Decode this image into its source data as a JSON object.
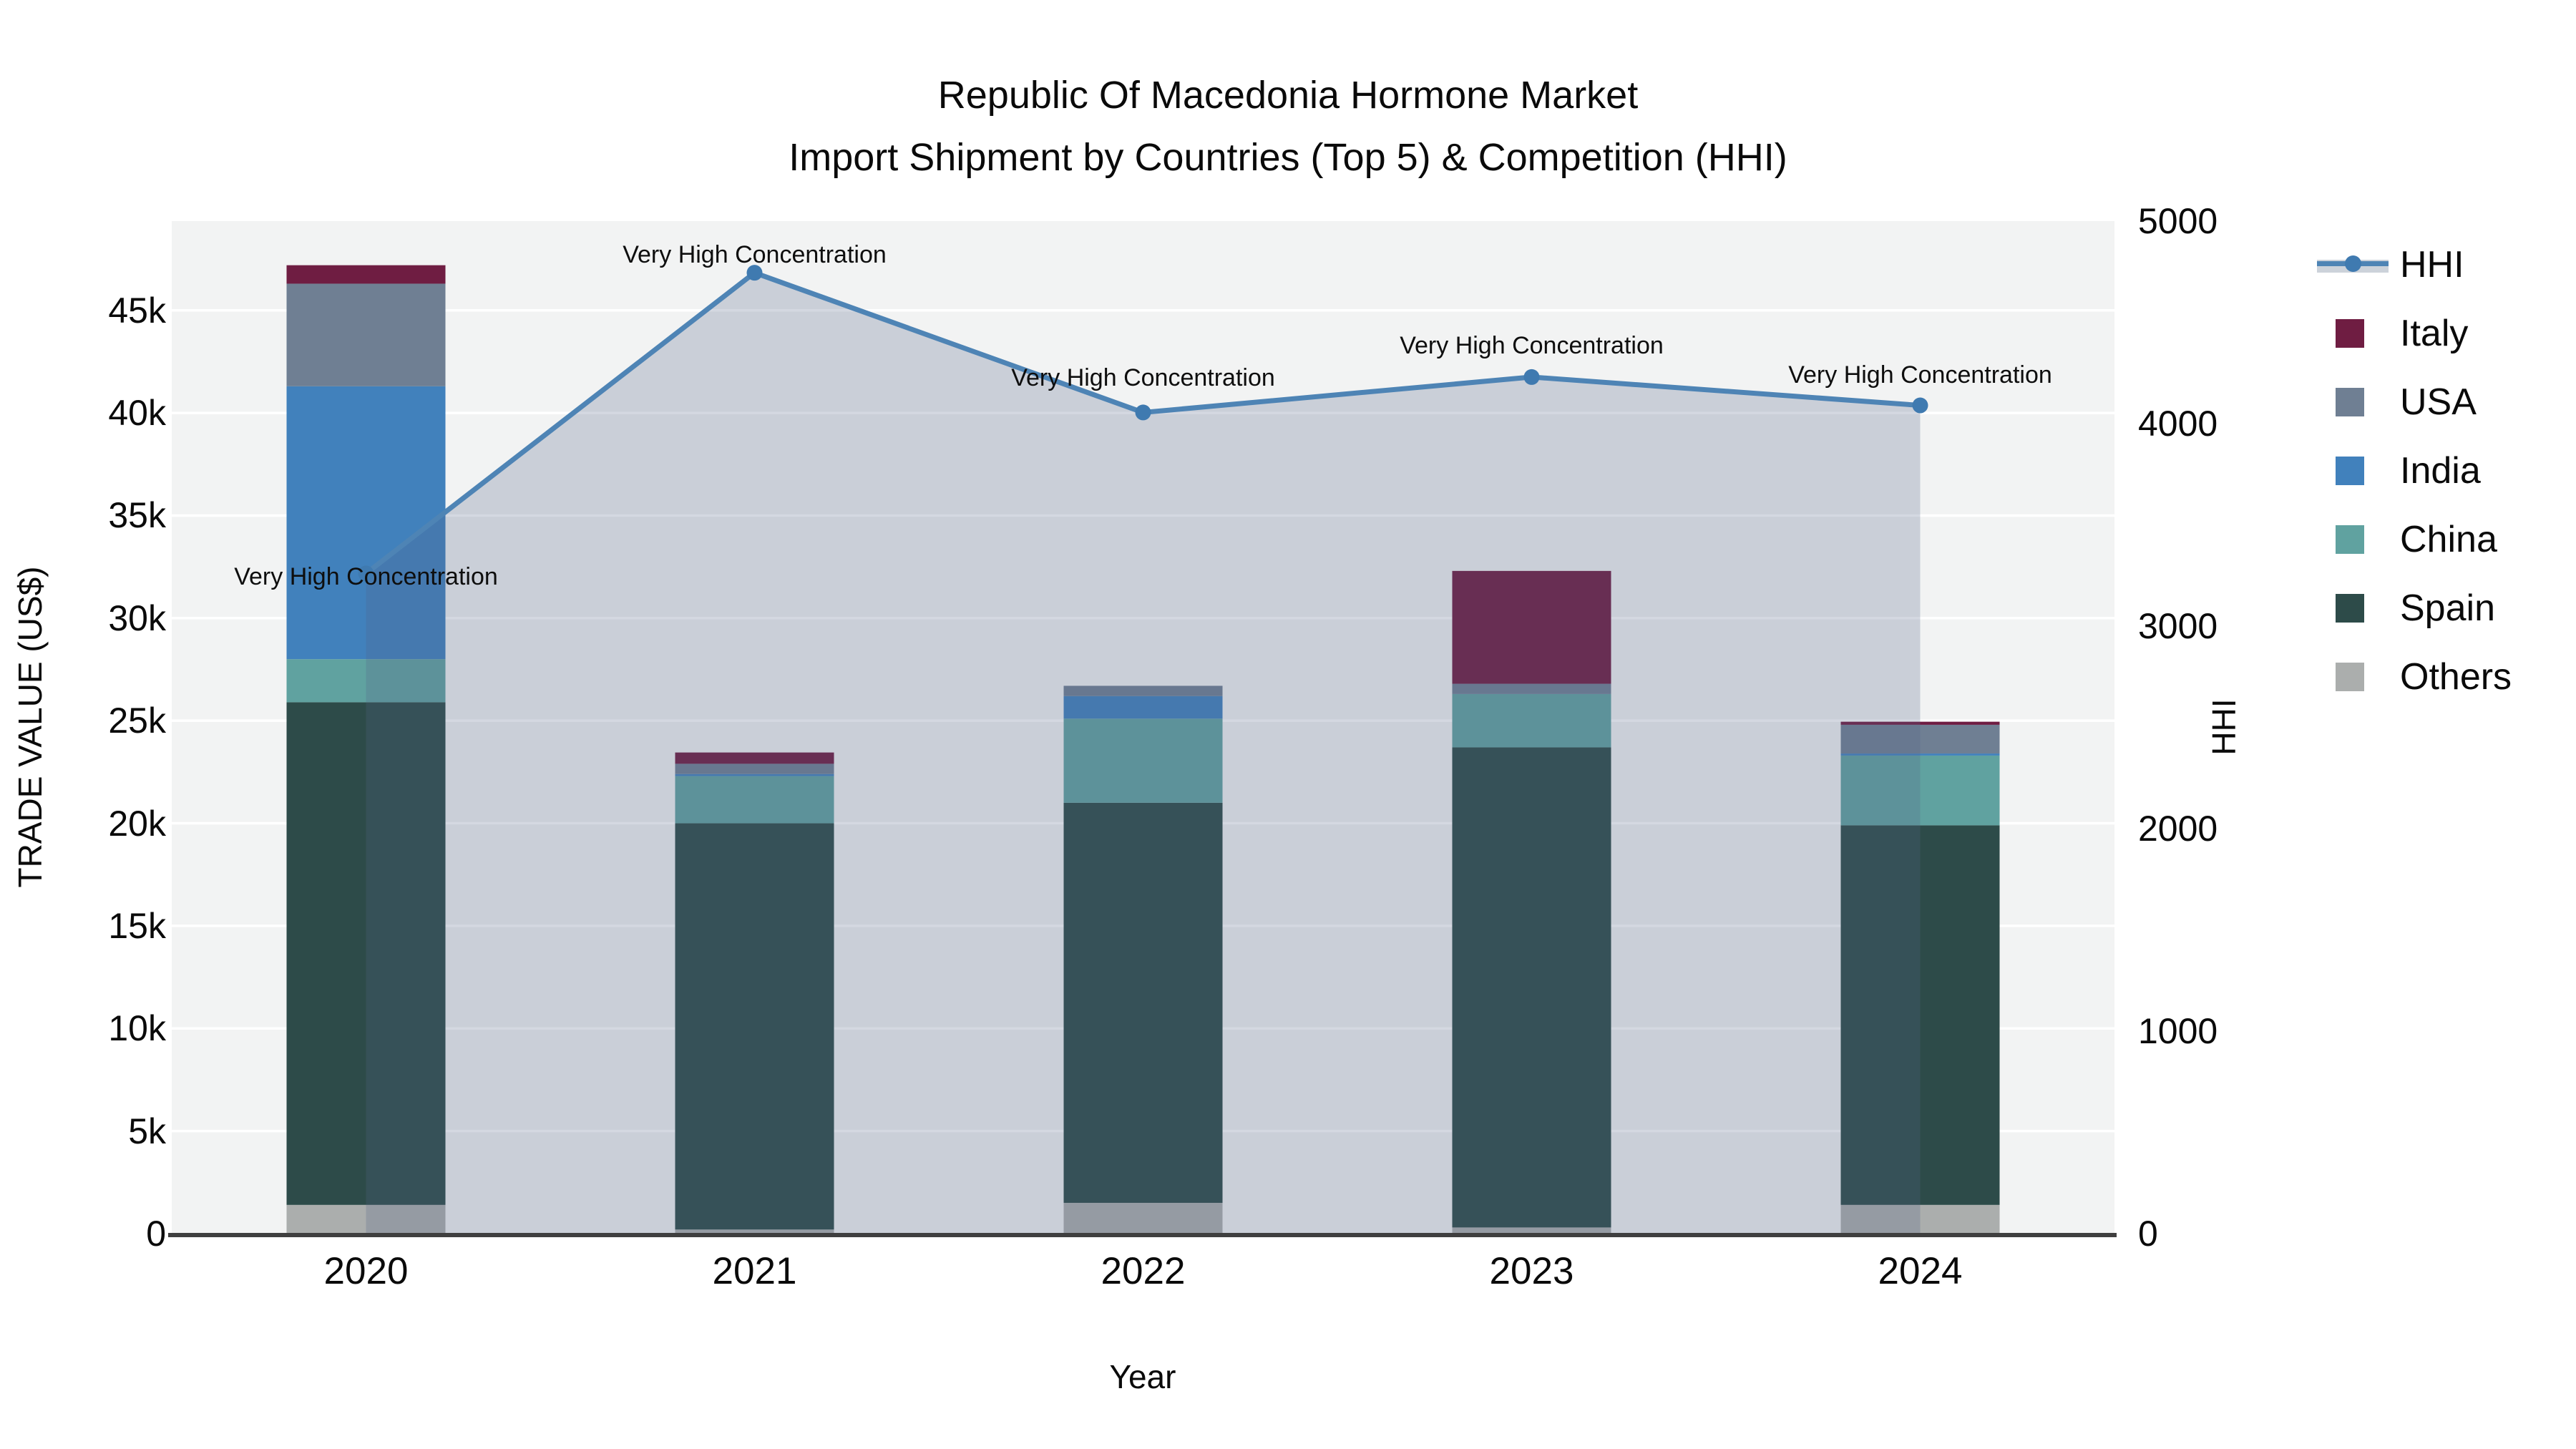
{
  "title": {
    "line1": "Republic Of Macedonia Hormone Market",
    "line2": "Import Shipment by Countries (Top 5) & Competition (HHI)"
  },
  "axes": {
    "x_title": "Year",
    "y_left_title": "TRADE VALUE (US$)",
    "y_right_title": "HHI",
    "y_left_ticks": [
      {
        "label": "0",
        "value": 0
      },
      {
        "label": "5k",
        "value": 5000
      },
      {
        "label": "10k",
        "value": 10000
      },
      {
        "label": "15k",
        "value": 15000
      },
      {
        "label": "20k",
        "value": 20000
      },
      {
        "label": "25k",
        "value": 25000
      },
      {
        "label": "30k",
        "value": 30000
      },
      {
        "label": "35k",
        "value": 35000
      },
      {
        "label": "40k",
        "value": 40000
      },
      {
        "label": "45k",
        "value": 45000
      }
    ],
    "y_right_ticks": [
      {
        "label": "0",
        "value": 0
      },
      {
        "label": "1000",
        "value": 1000
      },
      {
        "label": "2000",
        "value": 2000
      },
      {
        "label": "3000",
        "value": 3000
      },
      {
        "label": "4000",
        "value": 4000
      },
      {
        "label": "5000",
        "value": 5000
      }
    ]
  },
  "colors": {
    "plot_background": "#f2f3f3",
    "gridline": "#ffffff",
    "axis_line": "#3f3f3f",
    "hhi_line": "#4e84b5",
    "hhi_marker": "#3f7ab0",
    "hhi_area_fill": "rgba(82,99,136,0.25)",
    "italy": "#6f1d42",
    "usa": "#6f7f93",
    "india": "#4181bc",
    "china": "#60a2a0",
    "spain": "#2d4b49",
    "others": "#abaead"
  },
  "chart_data": {
    "type": [
      "bar",
      "line"
    ],
    "categories": [
      "2020",
      "2021",
      "2022",
      "2023",
      "2024"
    ],
    "bar_stack_order_bottom_to_top": [
      "Others",
      "Spain",
      "China",
      "India",
      "USA",
      "Italy"
    ],
    "series": [
      {
        "name": "Others",
        "axis": "left",
        "values": [
          1400,
          200,
          1500,
          300,
          1400
        ]
      },
      {
        "name": "Spain",
        "axis": "left",
        "values": [
          24500,
          19800,
          19500,
          23400,
          18500
        ]
      },
      {
        "name": "China",
        "axis": "left",
        "values": [
          2100,
          2300,
          4100,
          2600,
          3400
        ]
      },
      {
        "name": "India",
        "axis": "left",
        "values": [
          13300,
          100,
          1100,
          0,
          100
        ]
      },
      {
        "name": "USA",
        "axis": "left",
        "values": [
          5000,
          500,
          500,
          500,
          1400
        ]
      },
      {
        "name": "Italy",
        "axis": "left",
        "values": [
          900,
          550,
          0,
          5500,
          150
        ]
      }
    ],
    "line_series": {
      "name": "HHI",
      "axis": "right",
      "values": [
        3260,
        4745,
        4055,
        4230,
        4090
      ],
      "area_fill": true
    },
    "annotations": {
      "text": "Very High Concentration",
      "points": [
        {
          "category": "2020",
          "dy": 5
        },
        {
          "category": "2021",
          "dy": -25
        },
        {
          "category": "2022",
          "dy": -48
        },
        {
          "category": "2023",
          "dy": -44
        },
        {
          "category": "2024",
          "dy": -43
        }
      ]
    },
    "xlabel": "Year",
    "ylabel_left": "TRADE VALUE (US$)",
    "ylabel_right": "HHI",
    "y_left_range": [
      0,
      49350
    ],
    "y_right_range": [
      0,
      5000
    ],
    "grid": "horizontal-every-5k",
    "legend_position": "right"
  },
  "legend": {
    "items": [
      {
        "label": "HHI",
        "kind": "line"
      },
      {
        "label": "Italy",
        "kind": "swatch",
        "color_key": "italy"
      },
      {
        "label": "USA",
        "kind": "swatch",
        "color_key": "usa"
      },
      {
        "label": "India",
        "kind": "swatch",
        "color_key": "india"
      },
      {
        "label": "China",
        "kind": "swatch",
        "color_key": "china"
      },
      {
        "label": "Spain",
        "kind": "swatch",
        "color_key": "spain"
      },
      {
        "label": "Others",
        "kind": "swatch",
        "color_key": "others"
      }
    ]
  }
}
